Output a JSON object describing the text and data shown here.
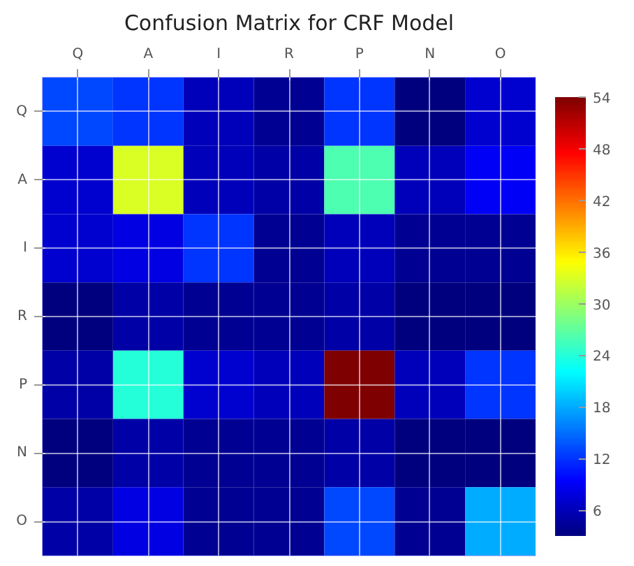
{
  "chart_data": {
    "type": "heatmap",
    "title": "Confusion Matrix for CRF Model",
    "categories": [
      "Q",
      "A",
      "I",
      "R",
      "P",
      "N",
      "O"
    ],
    "y_categories": [
      "Q",
      "A",
      "I",
      "R",
      "P",
      "N",
      "O"
    ],
    "cells": [
      [
        13,
        12,
        6,
        4,
        12,
        3,
        7
      ],
      [
        7,
        33,
        6,
        5,
        26,
        6,
        9
      ],
      [
        7,
        8,
        12,
        4,
        6,
        4,
        4
      ],
      [
        3,
        5,
        4,
        4,
        5,
        3,
        3
      ],
      [
        5,
        24,
        7,
        6,
        54,
        6,
        12
      ],
      [
        3,
        5,
        4,
        4,
        5,
        3,
        3
      ],
      [
        5,
        8,
        4,
        4,
        13,
        4,
        18
      ]
    ],
    "clim": [
      3,
      54
    ],
    "cticks": [
      6,
      12,
      18,
      24,
      30,
      36,
      42,
      48,
      54
    ],
    "grid": true
  }
}
